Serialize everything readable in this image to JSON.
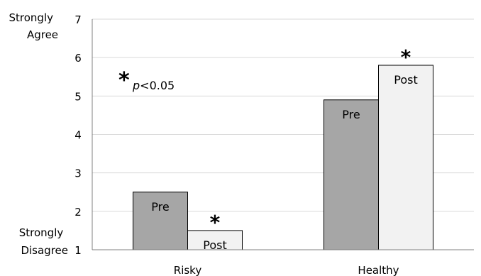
{
  "chart_data": {
    "type": "bar",
    "title": "",
    "xlabel": "",
    "ylabel": "",
    "categories": [
      "Risky",
      "Healthy"
    ],
    "series": [
      {
        "name": "Pre",
        "values": [
          2.5,
          4.9
        ],
        "color": "#a6a6a6"
      },
      {
        "name": "Post",
        "values": [
          1.5,
          5.8
        ],
        "color": "#f2f2f2"
      }
    ],
    "ylim": [
      1,
      7
    ],
    "yticks": [
      "1",
      "2",
      "3",
      "4",
      "5",
      "6",
      "7"
    ],
    "y_top_label": [
      "Strongly",
      "Agree"
    ],
    "y_bottom_label": [
      "Strongly",
      "Disagree"
    ],
    "significance_marker": "*",
    "significant_bars": [
      {
        "category": "Risky",
        "series": "Post"
      },
      {
        "category": "Healthy",
        "series": "Post"
      }
    ],
    "annotation": {
      "marker": "*",
      "p_symbol": "p",
      "text": "<0.05"
    },
    "grid": true,
    "legend": "none"
  }
}
